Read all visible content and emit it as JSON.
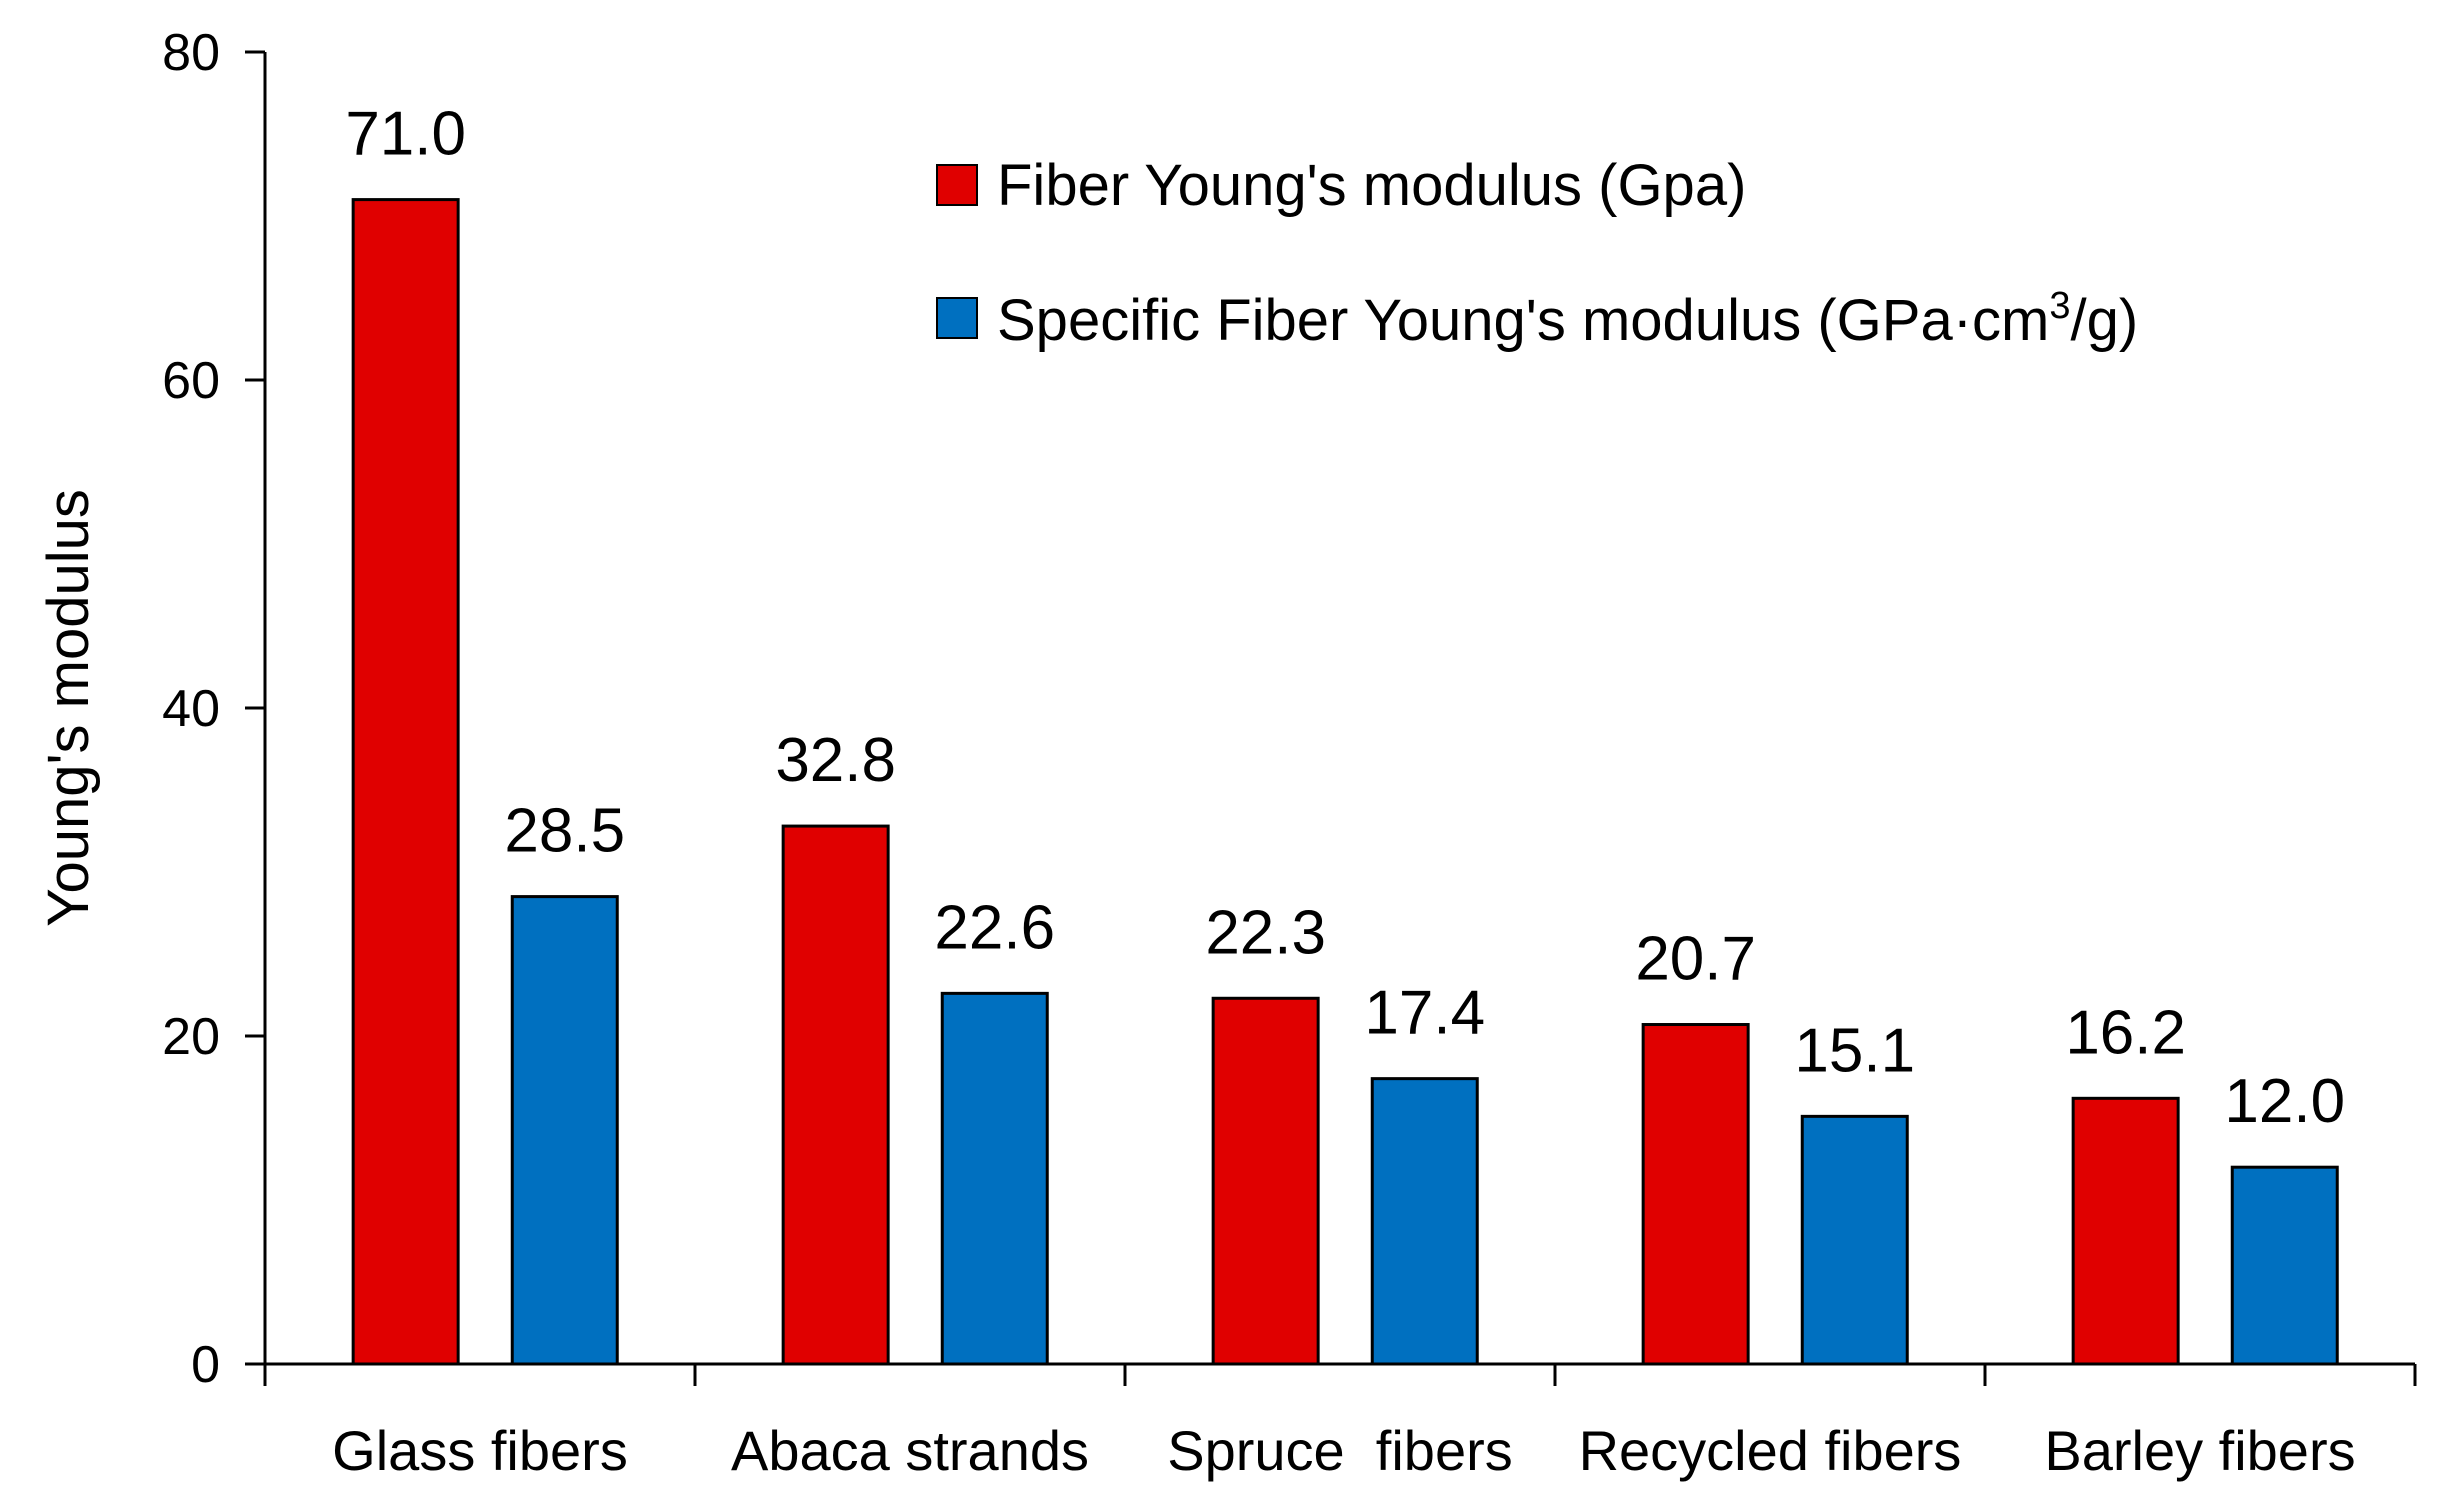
{
  "chart_data": {
    "type": "bar",
    "title": "",
    "xlabel": "",
    "ylabel": "Young's modulus",
    "ylim": [
      0,
      80
    ],
    "yticks": [
      0,
      20,
      40,
      60,
      80
    ],
    "grid": false,
    "legend_position": "top-right",
    "categories": [
      "Glass fibers",
      "Abaca strands",
      "Spruce  fibers",
      "Recycled fibers",
      "Barley fibers"
    ],
    "series": [
      {
        "name": "Fiber Young's modulus (Gpa)",
        "color": "#e00000",
        "values": [
          71.0,
          32.8,
          22.3,
          20.7,
          16.2
        ],
        "labels": [
          "71.0",
          "32.8",
          "22.3",
          "20.7",
          "16.2"
        ]
      },
      {
        "name": "Specific Fiber Young's modulus (GPa·cm³/g)",
        "legend_prefix": "Specific Fiber Young's modulus (GPa·cm",
        "legend_sup": "3",
        "legend_suffix": "/g)",
        "color": "#0070c0",
        "values": [
          28.5,
          22.6,
          17.4,
          15.1,
          12.0
        ],
        "labels": [
          "28.5",
          "22.6",
          "17.4",
          "15.1",
          "12.0"
        ]
      }
    ]
  }
}
